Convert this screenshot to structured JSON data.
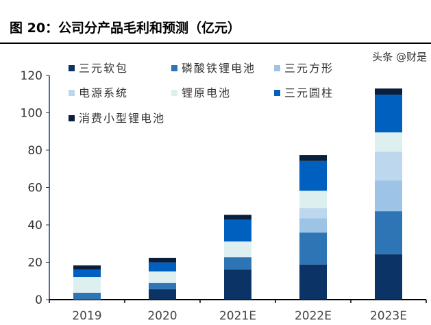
{
  "title": "图 20：公司分产品毛利和预测（亿元）",
  "watermark": "头条 @财是",
  "chart_data": {
    "type": "bar",
    "stacked": true,
    "title": "图 20：公司分产品毛利和预测（亿元）",
    "categories": [
      "2019",
      "2020",
      "2021E",
      "2022E",
      "2023E"
    ],
    "ylim": [
      0,
      120
    ],
    "yticks": [
      0,
      20,
      40,
      60,
      80,
      100,
      120
    ],
    "legend": "top-left, inside",
    "series": [
      {
        "name": "三元软包",
        "color": "#0b3366",
        "values": [
          0,
          5.6,
          16.1,
          18.8,
          24.3
        ]
      },
      {
        "name": "磷酸铁锂电池",
        "color": "#2e75b6",
        "values": [
          3.7,
          3.3,
          6.6,
          17.1,
          23
        ]
      },
      {
        "name": "三元方形",
        "color": "#9dc3e6",
        "values": [
          0,
          0,
          0,
          7.7,
          16.5
        ]
      },
      {
        "name": "电源系统",
        "color": "#bdd7ee",
        "values": [
          0,
          0,
          0,
          5.5,
          15.4
        ]
      },
      {
        "name": "锂原电池",
        "color": "#deeff0",
        "values": [
          8.4,
          6.2,
          8.4,
          9.2,
          10.3
        ]
      },
      {
        "name": "三元圆柱",
        "color": "#0060c0",
        "values": [
          4,
          4.8,
          11.7,
          15.9,
          20.2
        ]
      },
      {
        "name": "消费小型锂电池",
        "color": "#0a1f3d",
        "values": [
          2.2,
          2.5,
          2.6,
          3.2,
          3.3
        ]
      }
    ]
  }
}
